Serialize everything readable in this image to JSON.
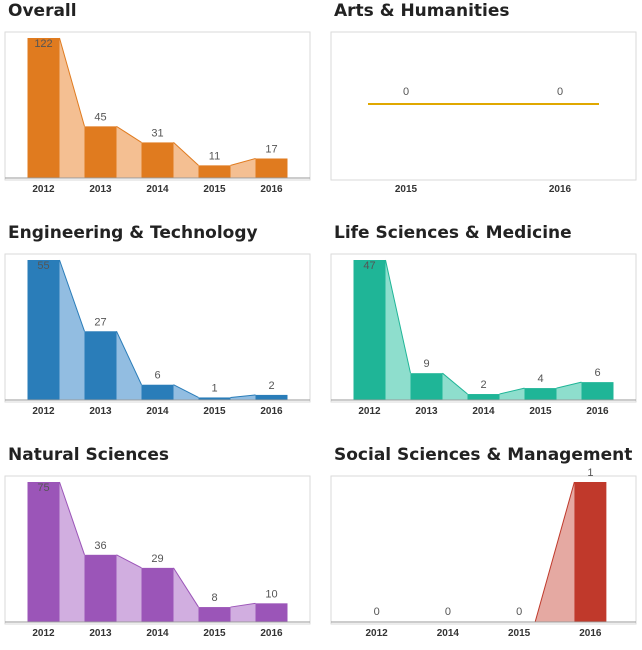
{
  "chart_data": [
    {
      "type": "bar",
      "title": "Overall",
      "color": "#e07b1f",
      "fill": "#f2b47f",
      "categories": [
        "2012",
        "2013",
        "2014",
        "2015",
        "2016"
      ],
      "values": [
        122,
        45,
        31,
        11,
        17
      ],
      "ylim": [
        0,
        122
      ]
    },
    {
      "type": "line",
      "title": "Arts & Humanities",
      "color": "#e0a800",
      "fill": "#f0d26a",
      "categories": [
        "2015",
        "2016"
      ],
      "values": [
        0,
        0
      ],
      "ylim": [
        0,
        1
      ]
    },
    {
      "type": "bar",
      "title": "Engineering & Technology",
      "color": "#2a7db9",
      "fill": "#7fb2dc",
      "categories": [
        "2012",
        "2013",
        "2014",
        "2015",
        "2016"
      ],
      "values": [
        55,
        27,
        6,
        1,
        2
      ],
      "ylim": [
        0,
        55
      ]
    },
    {
      "type": "bar",
      "title": "Life Sciences & Medicine",
      "color": "#1fb597",
      "fill": "#7ad8c4",
      "categories": [
        "2012",
        "2013",
        "2014",
        "2015",
        "2016"
      ],
      "values": [
        47,
        9,
        2,
        4,
        6
      ],
      "ylim": [
        0,
        47
      ]
    },
    {
      "type": "bar",
      "title": "Natural Sciences",
      "color": "#9b55b8",
      "fill": "#c9a0da",
      "categories": [
        "2012",
        "2013",
        "2014",
        "2015",
        "2016"
      ],
      "values": [
        75,
        36,
        29,
        8,
        10
      ],
      "ylim": [
        0,
        75
      ]
    },
    {
      "type": "bar",
      "title": "Social Sciences & Management",
      "color": "#c0392b",
      "fill": "#e09a92",
      "categories": [
        "2012",
        "2014",
        "2015",
        "2016"
      ],
      "values": [
        0,
        0,
        0,
        1
      ],
      "ylim": [
        0,
        1
      ]
    }
  ]
}
